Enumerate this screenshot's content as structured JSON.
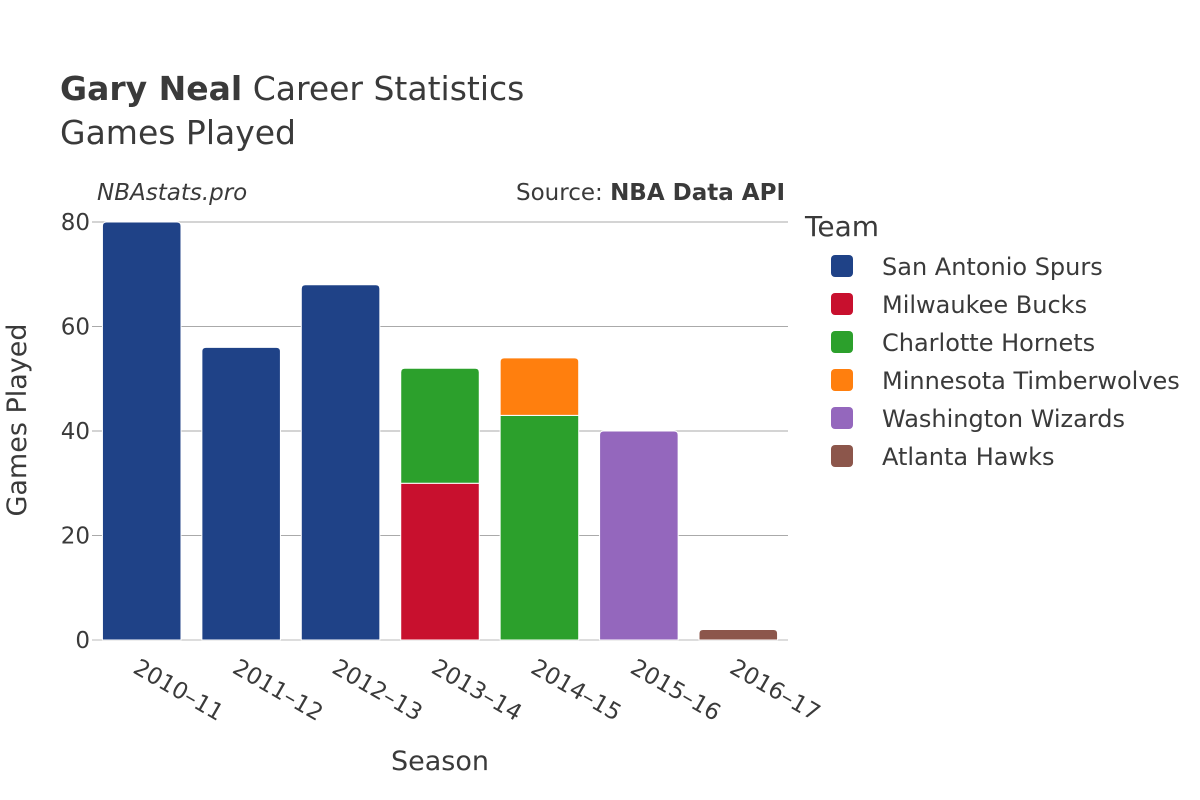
{
  "chart_data": {
    "type": "bar",
    "stacked": true,
    "title_bold": "Gary Neal",
    "title_rest": " Career Statistics",
    "subtitle": "Games Played",
    "watermark": "NBAstats.pro",
    "source_prefix": "Source: ",
    "source_name": "NBA Data API",
    "xlabel": "Season",
    "ylabel": "Games Played",
    "ylim": [
      0,
      80
    ],
    "yticks": [
      0,
      20,
      40,
      60,
      80
    ],
    "categories": [
      "2010–11",
      "2011–12",
      "2012–13",
      "2013–14",
      "2014–15",
      "2015–16",
      "2016–17"
    ],
    "legend_title": "Team",
    "series": [
      {
        "name": "San Antonio Spurs",
        "color": "#1f4287",
        "values": [
          80,
          56,
          68,
          0,
          0,
          0,
          0
        ]
      },
      {
        "name": "Milwaukee Bucks",
        "color": "#c8102e",
        "values": [
          0,
          0,
          0,
          30,
          0,
          0,
          0
        ]
      },
      {
        "name": "Charlotte Hornets",
        "color": "#2ca02c",
        "values": [
          0,
          0,
          0,
          22,
          43,
          0,
          0
        ]
      },
      {
        "name": "Minnesota Timberwolves",
        "color": "#ff7f0e",
        "values": [
          0,
          0,
          0,
          0,
          11,
          0,
          0
        ]
      },
      {
        "name": "Washington Wizards",
        "color": "#9467bd",
        "values": [
          0,
          0,
          0,
          0,
          0,
          40,
          0
        ]
      },
      {
        "name": "Atlanta Hawks",
        "color": "#8c564b",
        "values": [
          0,
          0,
          0,
          0,
          0,
          0,
          2
        ]
      }
    ]
  }
}
